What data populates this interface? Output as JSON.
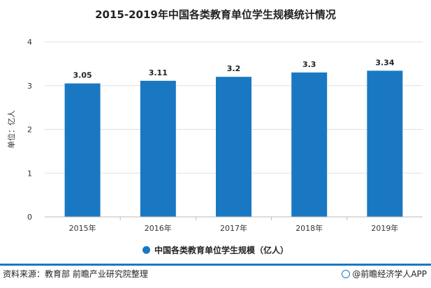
{
  "chart_data": {
    "type": "bar",
    "title": "2015-2019年中国各类教育单位学生规模统计情况",
    "categories": [
      "2015年",
      "2016年",
      "2017年",
      "2018年",
      "2019年"
    ],
    "series": [
      {
        "name": "中国各类教育单位学生规模（亿人）",
        "values": [
          3.05,
          3.11,
          3.2,
          3.3,
          3.34
        ],
        "color": "#1a78c2"
      }
    ],
    "data_labels": [
      "3.05",
      "3.11",
      "3.2",
      "3.3",
      "3.34"
    ],
    "ylabel": "单位：亿人",
    "ylim": [
      0,
      4
    ],
    "yticks": [
      0,
      1,
      2,
      3,
      4
    ],
    "grid": true,
    "legend_position": "bottom"
  },
  "footer": {
    "source": "资料来源：教育部 前瞻产业研究院整理",
    "brand": "@前瞻经济学人APP",
    "accent_color": "#1a78c2"
  }
}
